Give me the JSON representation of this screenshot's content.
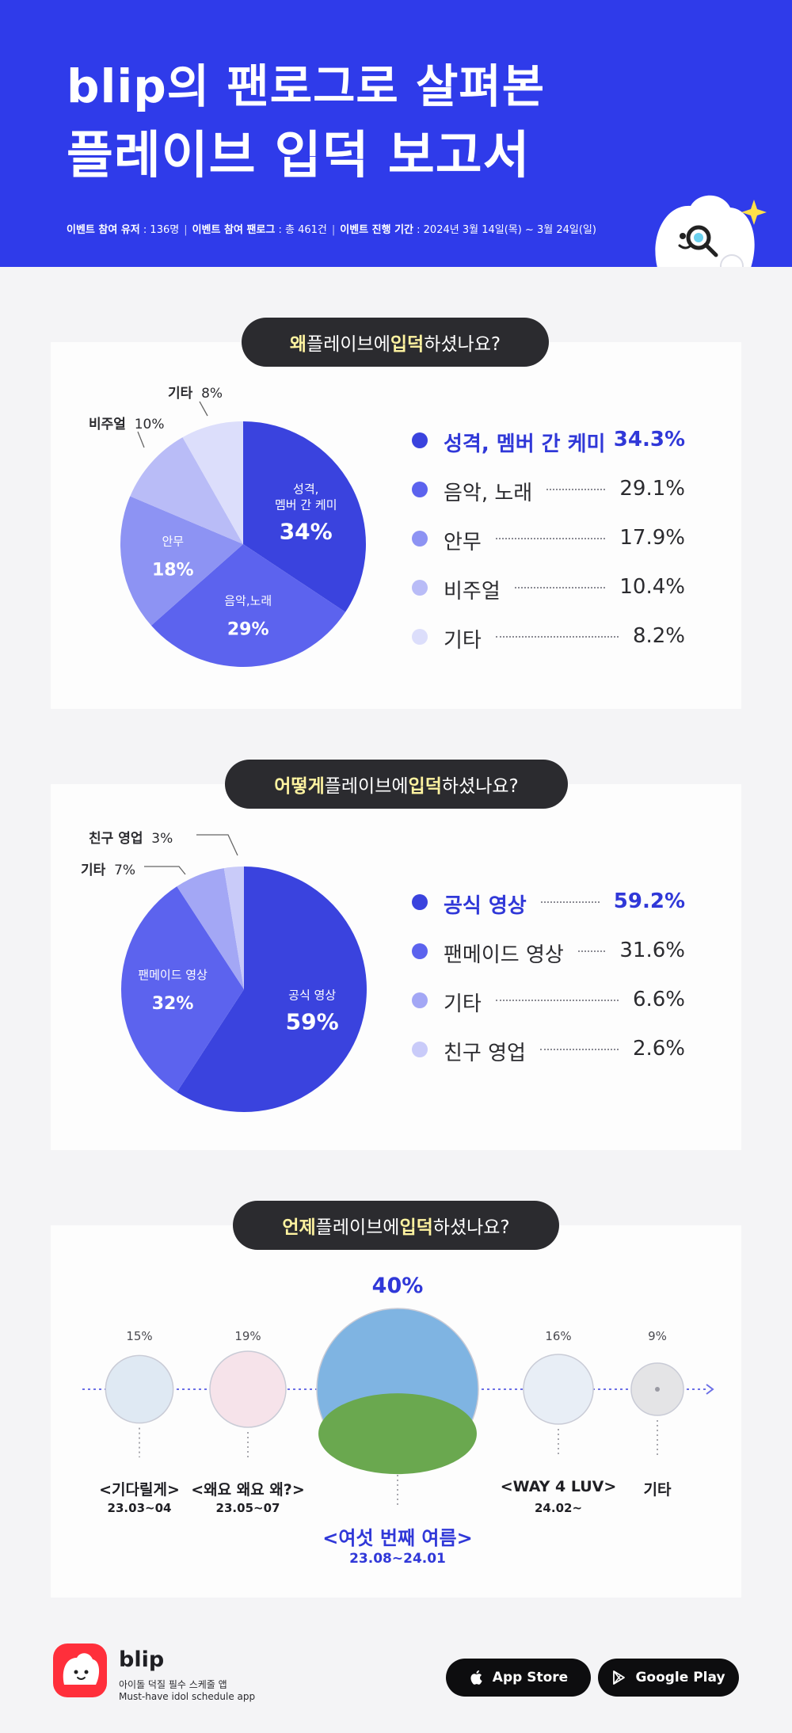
{
  "header": {
    "title_line1": "blip의 팬로그로 살펴본",
    "title_line2": "플레이브 입덕 보고서",
    "meta": [
      {
        "label": "이벤트 참여 유저",
        "value": " : 136명"
      },
      {
        "label": "이벤트 참여 팬로그",
        "value": " : 총 461건"
      },
      {
        "label": "이벤트 진행 기간",
        "value": " : 2024년 3월 14일(목) ~ 3월 24일(일)"
      }
    ],
    "meta_sep": "|",
    "colors": {
      "background": "#2f3bea",
      "sparkle": "#ffe04a"
    }
  },
  "section1": {
    "question": {
      "hl1": "왜",
      "mid": " 플레이브에 ",
      "hl2": "입덕",
      "end": "하셨나요?"
    }
  },
  "section2": {
    "question": {
      "hl1": "어떻게",
      "mid": " 플레이브에 ",
      "hl2": "입덕",
      "end": "하셨나요?"
    }
  },
  "section3": {
    "question": {
      "hl1": "언제",
      "mid": " 플레이브에 ",
      "hl2": "입덕",
      "end": "하셨나요?"
    }
  },
  "chart_data": [
    {
      "type": "pie",
      "categories": [
        "성격, 멤버 간 케미",
        "음악, 노래",
        "안무",
        "비주얼",
        "기타"
      ],
      "values": [
        34.3,
        29.1,
        17.9,
        10.4,
        8.2
      ],
      "slice_labels": [
        "성격,\n멤버 간 케미",
        "음악,노래",
        "안무",
        "비주얼",
        "기타"
      ],
      "slice_pct_labels": [
        "34%",
        "29%",
        "18%",
        "10%",
        "8%"
      ],
      "legend_values": [
        "34.3%",
        "29.1%",
        "17.9%",
        "10.4%",
        "8.2%"
      ],
      "colors": [
        "#3a43de",
        "#5c63ee",
        "#8d93f3",
        "#b9bcf7",
        "#dcdefb"
      ]
    },
    {
      "type": "pie",
      "categories": [
        "공식 영상",
        "팬메이드 영상",
        "기타",
        "친구 영업"
      ],
      "values": [
        59.2,
        31.6,
        6.6,
        2.6
      ],
      "slice_labels": [
        "공식 영상",
        "팬메이드 영상",
        "기타",
        "친구 영업"
      ],
      "slice_pct_labels": [
        "59%",
        "32%",
        "7%",
        "3%"
      ],
      "legend_values": [
        "59.2%",
        "31.6%",
        "6.6%",
        "2.6%"
      ],
      "colors": [
        "#3a43de",
        "#5c63ee",
        "#a3a7f5",
        "#c9cbf9"
      ]
    },
    {
      "type": "bar",
      "categories": [
        "<기다릴게>",
        "<왜요 왜요 왜?>",
        "<여섯 번째 여름>",
        "<WAY 4 LUV>",
        "기타"
      ],
      "dates": [
        "23.03~04",
        "23.05~07",
        "23.08~24.01",
        "24.02~",
        ""
      ],
      "values": [
        15,
        19,
        40,
        16,
        9
      ],
      "value_labels": [
        "15%",
        "19%",
        "40%",
        "16%",
        "9%"
      ]
    }
  ],
  "footer": {
    "brand": "blip",
    "tagline_ko": "아이돌 덕질 필수 스케줄 앱",
    "tagline_en": "Must-have idol schedule app",
    "app_store": "App Store",
    "google_play": "Google Play",
    "logo_color": "#ff2f3b"
  }
}
